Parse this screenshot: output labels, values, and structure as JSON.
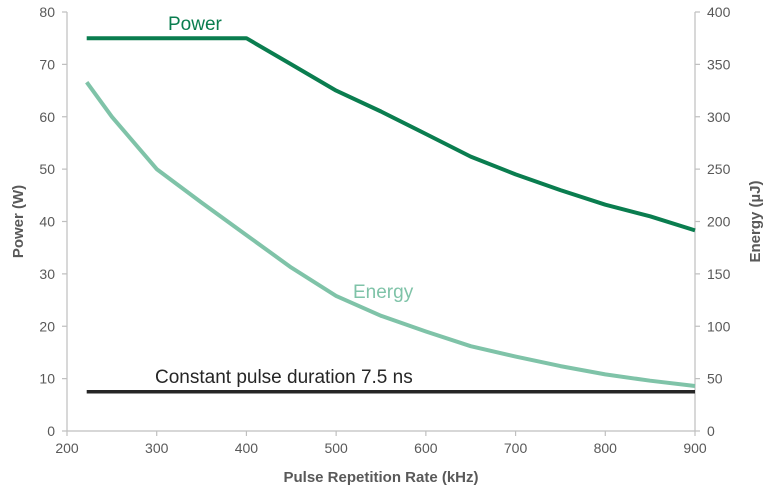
{
  "chart_data": {
    "type": "line",
    "xlabel": "Pulse Repetition Rate (kHz)",
    "ylabel": "Power (W)",
    "y2label": "Energy (µJ)",
    "xlim": [
      200,
      900
    ],
    "ylim": [
      0,
      80
    ],
    "y2lim": [
      0,
      400
    ],
    "x_ticks": [
      "200",
      "300",
      "400",
      "500",
      "600",
      "700",
      "800",
      "900"
    ],
    "y_ticks": [
      "0",
      "10",
      "20",
      "30",
      "40",
      "50",
      "60",
      "70",
      "80"
    ],
    "y2_ticks": [
      "0",
      "50",
      "100",
      "150",
      "200",
      "250",
      "300",
      "350",
      "400"
    ],
    "grid": false,
    "series": [
      {
        "name": "Power",
        "axis": "left",
        "color": "#0a7d4f",
        "x": [
          222,
          300,
          400,
          450,
          500,
          550,
          600,
          650,
          700,
          750,
          800,
          850,
          900
        ],
        "y": [
          75,
          75,
          75,
          70,
          65,
          61,
          56.7,
          52.4,
          49,
          46,
          43.2,
          41,
          38.3
        ]
      },
      {
        "name": "Energy",
        "axis": "right",
        "color": "#7fc3a8",
        "x": [
          222,
          250,
          300,
          350,
          400,
          450,
          500,
          550,
          600,
          650,
          700,
          750,
          800,
          850,
          900
        ],
        "y": [
          333,
          300,
          250,
          218,
          187,
          156,
          129,
          110,
          95,
          81,
          71,
          62,
          54,
          48,
          43
        ]
      },
      {
        "name": "Constant pulse duration 7.5 ns",
        "axis": "left",
        "color": "#262626",
        "x": [
          222,
          900
        ],
        "y": [
          7.5,
          7.5
        ]
      }
    ]
  }
}
